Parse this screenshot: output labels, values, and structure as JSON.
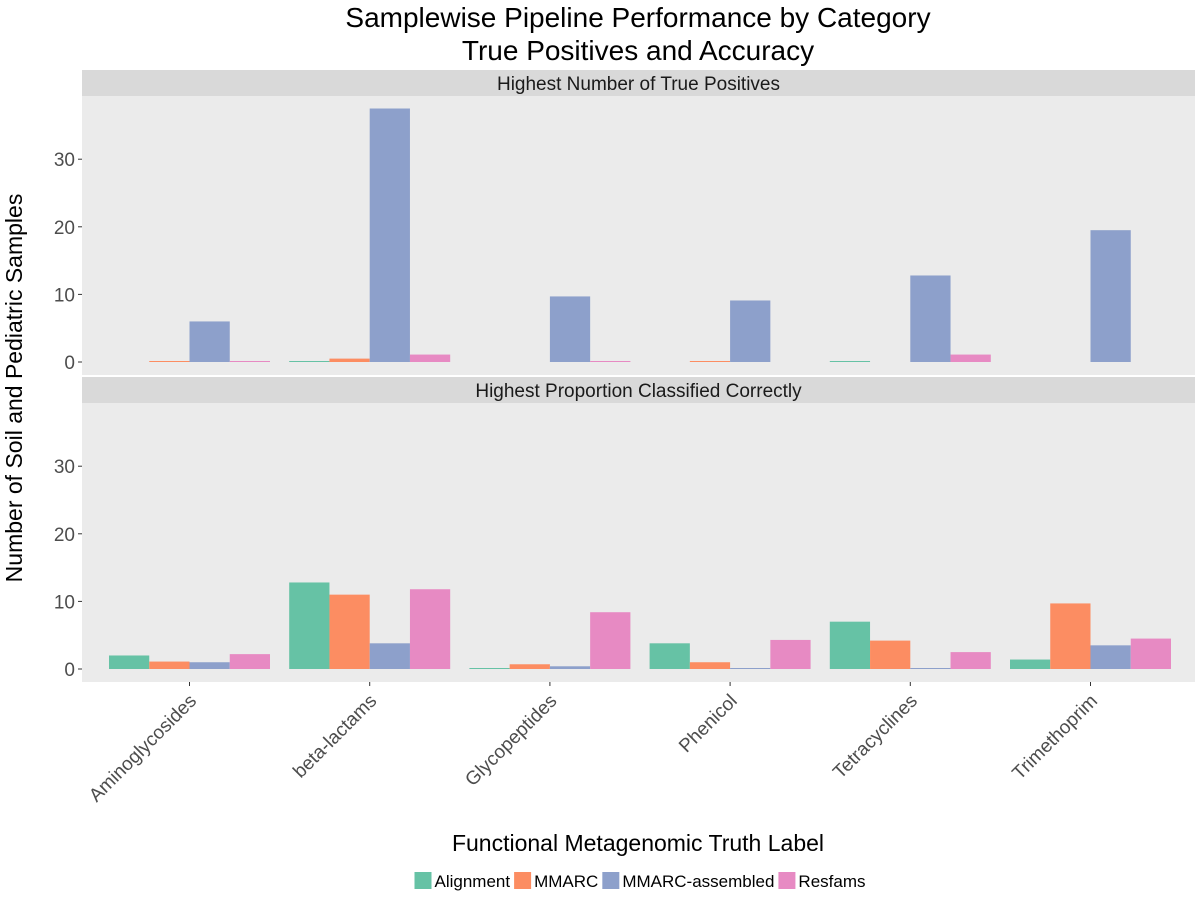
{
  "chart_data": {
    "type": "bar",
    "title": "Samplewise Pipeline Performance by Category",
    "subtitle": "True Positives and Accuracy",
    "xlabel": "Functional Metagenomic Truth Label",
    "ylabel": "Number of Soil and Pediatric Samples",
    "ylim": [
      0,
      38
    ],
    "yticks": [
      0,
      10,
      20,
      30
    ],
    "grid": false,
    "legend_position": "bottom",
    "categories": [
      "Aminoglycosides",
      "beta-lactams",
      "Glycopeptides",
      "Phenicol",
      "Tetracyclines",
      "Trimethoprim"
    ],
    "series_names": [
      "Alignment",
      "MMARC",
      "MMARC-assembled",
      "Resfams"
    ],
    "colors": [
      "#66c2a5",
      "#fc8d62",
      "#8da0cb",
      "#e78ac3"
    ],
    "panels": [
      {
        "label": "Highest Number of True Positives",
        "series": [
          {
            "name": "Alignment",
            "values": [
              null,
              0.1,
              null,
              null,
              0.1,
              null
            ]
          },
          {
            "name": "MMARC",
            "values": [
              0.1,
              0.5,
              null,
              0.1,
              null,
              null
            ]
          },
          {
            "name": "MMARC-assembled",
            "values": [
              6,
              37.5,
              9.7,
              9.1,
              12.8,
              19.5
            ]
          },
          {
            "name": "Resfams",
            "values": [
              0.1,
              1.1,
              0.1,
              null,
              1.1,
              null
            ]
          }
        ]
      },
      {
        "label": "Highest Proportion Classified Correctly",
        "series": [
          {
            "name": "Alignment",
            "values": [
              2,
              12.8,
              0.1,
              3.8,
              7,
              1.4
            ]
          },
          {
            "name": "MMARC",
            "values": [
              1.1,
              11,
              0.7,
              1,
              4.2,
              9.7
            ]
          },
          {
            "name": "MMARC-assembled",
            "values": [
              1,
              3.8,
              0.4,
              0.1,
              0.1,
              3.5
            ]
          },
          {
            "name": "Resfams",
            "values": [
              2.2,
              11.8,
              8.4,
              4.3,
              2.5,
              4.5
            ]
          }
        ]
      }
    ]
  }
}
